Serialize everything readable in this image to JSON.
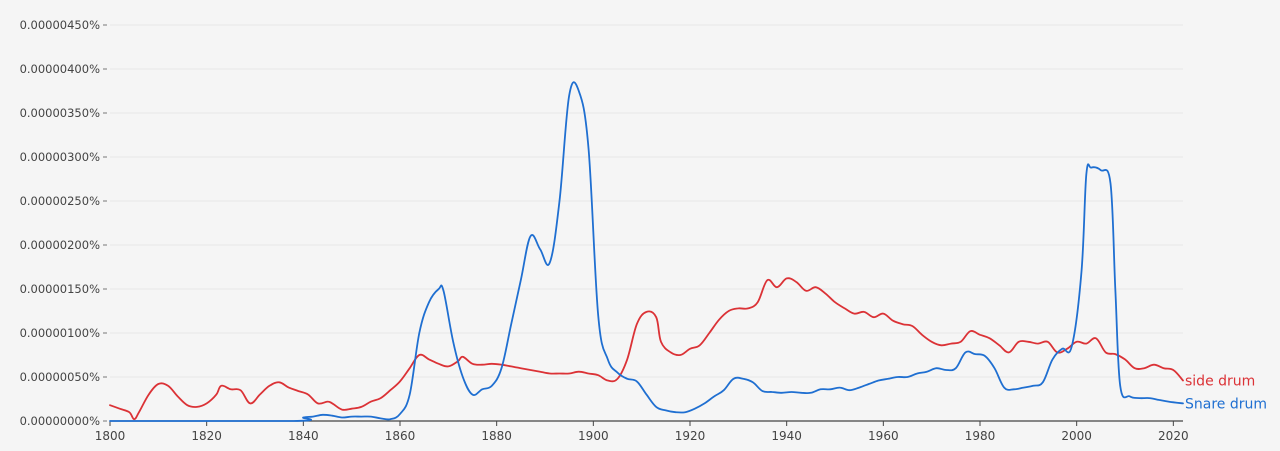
{
  "chart_data": {
    "type": "line",
    "title": "",
    "xlabel": "",
    "ylabel": "",
    "xlim": [
      1800,
      2022
    ],
    "ylim": [
      0,
      4.5e-06
    ],
    "grid": true,
    "legend": "inline-right",
    "y_ticks": [
      {
        "value": 4.5e-06,
        "label": "0.00000450%"
      },
      {
        "value": 4e-06,
        "label": "0.00000400%"
      },
      {
        "value": 3.5e-06,
        "label": "0.00000350%"
      },
      {
        "value": 3e-06,
        "label": "0.00000300%"
      },
      {
        "value": 2.5e-06,
        "label": "0.00000250%"
      },
      {
        "value": 2e-06,
        "label": "0.00000200%"
      },
      {
        "value": 1.5e-06,
        "label": "0.00000150%"
      },
      {
        "value": 1e-06,
        "label": "0.00000100%"
      },
      {
        "value": 5e-07,
        "label": "0.00000050%"
      },
      {
        "value": 0.0,
        "label": "0.00000000%"
      }
    ],
    "x_ticks": [
      1800,
      1820,
      1840,
      1860,
      1880,
      1900,
      1920,
      1940,
      1960,
      1980,
      2000,
      2020
    ],
    "series": [
      {
        "name": "side drum",
        "color": "#db3236",
        "points": [
          [
            1800,
            1.8e-07
          ],
          [
            1802,
            1.4e-07
          ],
          [
            1804,
            1e-07
          ],
          [
            1805,
            2e-08
          ],
          [
            1806,
            1e-07
          ],
          [
            1808,
            3e-07
          ],
          [
            1810,
            4.2e-07
          ],
          [
            1812,
            4e-07
          ],
          [
            1814,
            2.8e-07
          ],
          [
            1816,
            1.8e-07
          ],
          [
            1818,
            1.6e-07
          ],
          [
            1820,
            2e-07
          ],
          [
            1822,
            3e-07
          ],
          [
            1823,
            4e-07
          ],
          [
            1825,
            3.6e-07
          ],
          [
            1827,
            3.5e-07
          ],
          [
            1829,
            2e-07
          ],
          [
            1831,
            3e-07
          ],
          [
            1833,
            4e-07
          ],
          [
            1835,
            4.4e-07
          ],
          [
            1837,
            3.8e-07
          ],
          [
            1839,
            3.4e-07
          ],
          [
            1841,
            3e-07
          ],
          [
            1843,
            2e-07
          ],
          [
            1845,
            2.2e-07
          ],
          [
            1846,
            2e-07
          ],
          [
            1848,
            1.3e-07
          ],
          [
            1850,
            1.4e-07
          ],
          [
            1852,
            1.6e-07
          ],
          [
            1854,
            2.2e-07
          ],
          [
            1856,
            2.6e-07
          ],
          [
            1858,
            3.5e-07
          ],
          [
            1860,
            4.5e-07
          ],
          [
            1862,
            6e-07
          ],
          [
            1864,
            7.5e-07
          ],
          [
            1866,
            7e-07
          ],
          [
            1868,
            6.5e-07
          ],
          [
            1870,
            6.2e-07
          ],
          [
            1872,
            6.8e-07
          ],
          [
            1873,
            7.3e-07
          ],
          [
            1875,
            6.5e-07
          ],
          [
            1877,
            6.4e-07
          ],
          [
            1879,
            6.5e-07
          ],
          [
            1881,
            6.4e-07
          ],
          [
            1883,
            6.2e-07
          ],
          [
            1885,
            6e-07
          ],
          [
            1887,
            5.8e-07
          ],
          [
            1889,
            5.6e-07
          ],
          [
            1891,
            5.4e-07
          ],
          [
            1893,
            5.4e-07
          ],
          [
            1895,
            5.4e-07
          ],
          [
            1897,
            5.6e-07
          ],
          [
            1899,
            5.4e-07
          ],
          [
            1901,
            5.2e-07
          ],
          [
            1903,
            4.6e-07
          ],
          [
            1905,
            4.8e-07
          ],
          [
            1907,
            7e-07
          ],
          [
            1909,
            1.1e-06
          ],
          [
            1911,
            1.24e-06
          ],
          [
            1913,
            1.18e-06
          ],
          [
            1914,
            9e-07
          ],
          [
            1916,
            7.8e-07
          ],
          [
            1918,
            7.5e-07
          ],
          [
            1920,
            8.2e-07
          ],
          [
            1922,
            8.6e-07
          ],
          [
            1924,
            1e-06
          ],
          [
            1926,
            1.15e-06
          ],
          [
            1928,
            1.25e-06
          ],
          [
            1930,
            1.28e-06
          ],
          [
            1932,
            1.28e-06
          ],
          [
            1934,
            1.35e-06
          ],
          [
            1936,
            1.6e-06
          ],
          [
            1938,
            1.52e-06
          ],
          [
            1940,
            1.62e-06
          ],
          [
            1942,
            1.58e-06
          ],
          [
            1944,
            1.48e-06
          ],
          [
            1946,
            1.52e-06
          ],
          [
            1948,
            1.45e-06
          ],
          [
            1950,
            1.35e-06
          ],
          [
            1952,
            1.28e-06
          ],
          [
            1954,
            1.22e-06
          ],
          [
            1956,
            1.24e-06
          ],
          [
            1958,
            1.18e-06
          ],
          [
            1960,
            1.22e-06
          ],
          [
            1962,
            1.14e-06
          ],
          [
            1964,
            1.1e-06
          ],
          [
            1966,
            1.08e-06
          ],
          [
            1968,
            9.8e-07
          ],
          [
            1970,
            9e-07
          ],
          [
            1972,
            8.6e-07
          ],
          [
            1974,
            8.8e-07
          ],
          [
            1976,
            9e-07
          ],
          [
            1978,
            1.02e-06
          ],
          [
            1980,
            9.8e-07
          ],
          [
            1982,
            9.4e-07
          ],
          [
            1984,
            8.6e-07
          ],
          [
            1986,
            7.8e-07
          ],
          [
            1988,
            9e-07
          ],
          [
            1990,
            9e-07
          ],
          [
            1992,
            8.8e-07
          ],
          [
            1994,
            9e-07
          ],
          [
            1996,
            7.8e-07
          ],
          [
            1998,
            8.2e-07
          ],
          [
            2000,
            9e-07
          ],
          [
            2002,
            8.8e-07
          ],
          [
            2004,
            9.4e-07
          ],
          [
            2006,
            7.8e-07
          ],
          [
            2008,
            7.6e-07
          ],
          [
            2010,
            7e-07
          ],
          [
            2012,
            6e-07
          ],
          [
            2014,
            6e-07
          ],
          [
            2016,
            6.4e-07
          ],
          [
            2018,
            6e-07
          ],
          [
            2020,
            5.8e-07
          ],
          [
            2022,
            4.6e-07
          ]
        ]
      },
      {
        "name": "Snare drum",
        "color": "#1f6fd1",
        "points": [
          [
            1800,
            0.0
          ],
          [
            1838,
            0.0
          ],
          [
            1840,
            4e-08
          ],
          [
            1842,
            5e-08
          ],
          [
            1844,
            7e-08
          ],
          [
            1846,
            6e-08
          ],
          [
            1848,
            4e-08
          ],
          [
            1850,
            5e-08
          ],
          [
            1852,
            5e-08
          ],
          [
            1854,
            5e-08
          ],
          [
            1856,
            3e-08
          ],
          [
            1858,
            2e-08
          ],
          [
            1860,
            8e-08
          ],
          [
            1862,
            3e-07
          ],
          [
            1864,
            1e-06
          ],
          [
            1866,
            1.35e-06
          ],
          [
            1868,
            1.5e-06
          ],
          [
            1869,
            1.48e-06
          ],
          [
            1871,
            9e-07
          ],
          [
            1873,
            5e-07
          ],
          [
            1875,
            3e-07
          ],
          [
            1877,
            3.6e-07
          ],
          [
            1879,
            4e-07
          ],
          [
            1881,
            6e-07
          ],
          [
            1883,
            1.1e-06
          ],
          [
            1885,
            1.6e-06
          ],
          [
            1887,
            2.1e-06
          ],
          [
            1889,
            1.95e-06
          ],
          [
            1891,
            1.8e-06
          ],
          [
            1893,
            2.5e-06
          ],
          [
            1895,
            3.7e-06
          ],
          [
            1897,
            3.75e-06
          ],
          [
            1899,
            3.1e-06
          ],
          [
            1901,
            1.2e-06
          ],
          [
            1903,
            7e-07
          ],
          [
            1905,
            5.5e-07
          ],
          [
            1907,
            4.8e-07
          ],
          [
            1909,
            4.5e-07
          ],
          [
            1911,
            3e-07
          ],
          [
            1913,
            1.6e-07
          ],
          [
            1915,
            1.2e-07
          ],
          [
            1917,
            1e-07
          ],
          [
            1919,
            1e-07
          ],
          [
            1921,
            1.4e-07
          ],
          [
            1923,
            2e-07
          ],
          [
            1925,
            2.8e-07
          ],
          [
            1927,
            3.5e-07
          ],
          [
            1929,
            4.8e-07
          ],
          [
            1931,
            4.8e-07
          ],
          [
            1933,
            4.4e-07
          ],
          [
            1935,
            3.4e-07
          ],
          [
            1937,
            3.3e-07
          ],
          [
            1939,
            3.2e-07
          ],
          [
            1941,
            3.3e-07
          ],
          [
            1943,
            3.2e-07
          ],
          [
            1945,
            3.2e-07
          ],
          [
            1947,
            3.6e-07
          ],
          [
            1949,
            3.6e-07
          ],
          [
            1951,
            3.8e-07
          ],
          [
            1953,
            3.5e-07
          ],
          [
            1955,
            3.8e-07
          ],
          [
            1957,
            4.2e-07
          ],
          [
            1959,
            4.6e-07
          ],
          [
            1961,
            4.8e-07
          ],
          [
            1963,
            5e-07
          ],
          [
            1965,
            5e-07
          ],
          [
            1967,
            5.4e-07
          ],
          [
            1969,
            5.6e-07
          ],
          [
            1971,
            6e-07
          ],
          [
            1973,
            5.8e-07
          ],
          [
            1975,
            6e-07
          ],
          [
            1977,
            7.8e-07
          ],
          [
            1979,
            7.6e-07
          ],
          [
            1981,
            7.4e-07
          ],
          [
            1983,
            6e-07
          ],
          [
            1985,
            3.8e-07
          ],
          [
            1987,
            3.6e-07
          ],
          [
            1989,
            3.8e-07
          ],
          [
            1991,
            4e-07
          ],
          [
            1993,
            4.4e-07
          ],
          [
            1995,
            7e-07
          ],
          [
            1997,
            8.2e-07
          ],
          [
            1999,
            8.5e-07
          ],
          [
            2001,
            1.7e-06
          ],
          [
            2002,
            2.8e-06
          ],
          [
            2003,
            2.88e-06
          ],
          [
            2005,
            2.85e-06
          ],
          [
            2007,
            2.7e-06
          ],
          [
            2008,
            1.5e-06
          ],
          [
            2009,
            4e-07
          ],
          [
            2011,
            2.8e-07
          ],
          [
            2013,
            2.6e-07
          ],
          [
            2015,
            2.6e-07
          ],
          [
            2017,
            2.4e-07
          ],
          [
            2019,
            2.2e-07
          ],
          [
            2022,
            2e-07
          ]
        ]
      }
    ]
  }
}
